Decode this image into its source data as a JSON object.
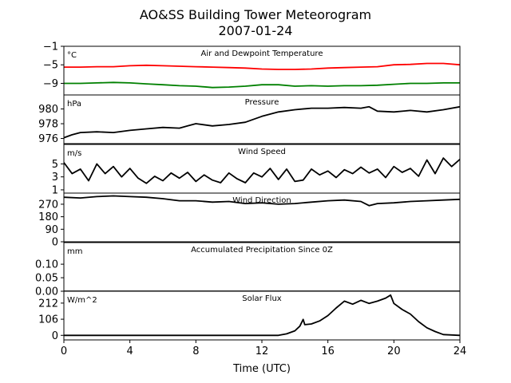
{
  "chart_data": {
    "type": "line",
    "title": "AO&SS Building Tower Meteorogram",
    "subtitle": "2007-01-24",
    "xlabel": "Time (UTC)",
    "xlim": [
      0,
      24
    ],
    "xticks": [
      "0",
      "4",
      "8",
      "12",
      "16",
      "20",
      "24"
    ],
    "panels": [
      {
        "id": "temp",
        "label": "Air and Dewpoint Temperature",
        "unit": "°C",
        "ylim": [
          -11.5,
          -1
        ],
        "yticks": [
          -1,
          -5,
          -9
        ],
        "ytick_labels": [
          "−1",
          "−5",
          "−9"
        ],
        "series": [
          {
            "color": "#ff0000",
            "x": [
              0,
              1,
              2,
              3,
              4,
              5,
              6,
              7,
              8,
              9,
              10,
              11,
              12,
              13,
              14,
              15,
              16,
              17,
              18,
              19,
              20,
              21,
              22,
              23,
              24
            ],
            "y": [
              -5.5,
              -5.5,
              -5.4,
              -5.4,
              -5.2,
              -5.1,
              -5.2,
              -5.3,
              -5.4,
              -5.5,
              -5.6,
              -5.7,
              -5.9,
              -6.0,
              -6.0,
              -5.9,
              -5.7,
              -5.6,
              -5.5,
              -5.4,
              -5.0,
              -4.9,
              -4.7,
              -4.7,
              -5.0
            ]
          },
          {
            "color": "#008000",
            "x": [
              0,
              1,
              2,
              3,
              4,
              5,
              6,
              7,
              8,
              9,
              10,
              11,
              12,
              13,
              14,
              15,
              16,
              17,
              18,
              19,
              20,
              21,
              22,
              23,
              24
            ],
            "y": [
              -9.0,
              -9.0,
              -8.9,
              -8.8,
              -8.9,
              -9.1,
              -9.3,
              -9.5,
              -9.6,
              -9.9,
              -9.8,
              -9.6,
              -9.3,
              -9.3,
              -9.6,
              -9.5,
              -9.6,
              -9.5,
              -9.5,
              -9.4,
              -9.2,
              -9.0,
              -9.0,
              -8.9,
              -8.9
            ]
          }
        ]
      },
      {
        "id": "pressure",
        "label": "Pressure",
        "unit": "hPa",
        "ylim": [
          975.3,
          981.9
        ],
        "yticks": [
          976,
          978,
          980
        ],
        "ytick_labels": [
          "976",
          "978",
          "980"
        ],
        "series": [
          {
            "color": "#000000",
            "x": [
              0,
              0.5,
              1,
              2,
              3,
              4,
              5,
              6,
              7,
              7.5,
              8,
              9,
              10,
              11,
              12,
              13,
              14,
              15,
              16,
              17,
              18,
              18.5,
              19,
              20,
              21,
              22,
              23,
              24
            ],
            "y": [
              976.1,
              976.5,
              976.8,
              976.9,
              976.8,
              977.1,
              977.3,
              977.5,
              977.4,
              977.7,
              978.0,
              977.7,
              977.9,
              978.2,
              979.0,
              979.6,
              979.9,
              980.1,
              980.1,
              980.2,
              980.1,
              980.3,
              979.7,
              979.6,
              979.8,
              979.6,
              979.9,
              980.3
            ]
          }
        ]
      },
      {
        "id": "wind_speed",
        "label": "Wind Speed",
        "unit": "m/s",
        "ylim": [
          0.5,
          8
        ],
        "yticks": [
          1,
          3,
          5
        ],
        "ytick_labels": [
          "1",
          "3",
          "5"
        ],
        "series": [
          {
            "color": "#000000",
            "x": [
              0,
              0.5,
              1,
              1.5,
              2,
              2.5,
              3,
              3.5,
              4,
              4.5,
              5,
              5.5,
              6,
              6.5,
              7,
              7.5,
              8,
              8.5,
              9,
              9.5,
              10,
              10.5,
              11,
              11.5,
              12,
              12.5,
              13,
              13.5,
              14,
              14.5,
              15,
              15.5,
              16,
              16.5,
              17,
              17.5,
              18,
              18.5,
              19,
              19.5,
              20,
              20.5,
              21,
              21.5,
              22,
              22.5,
              23,
              23.5,
              24
            ],
            "y": [
              5.2,
              3.5,
              4.2,
              2.4,
              5.0,
              3.5,
              4.6,
              3.0,
              4.3,
              2.8,
              2.0,
              3.1,
              2.4,
              3.6,
              2.8,
              3.7,
              2.3,
              3.3,
              2.5,
              2.1,
              3.6,
              2.7,
              2.1,
              3.6,
              3.0,
              4.3,
              2.6,
              4.2,
              2.3,
              2.5,
              4.2,
              3.3,
              3.9,
              2.9,
              4.1,
              3.5,
              4.5,
              3.6,
              4.2,
              2.9,
              4.6,
              3.7,
              4.3,
              3.1,
              5.6,
              3.5,
              5.9,
              4.6,
              5.7
            ]
          }
        ]
      },
      {
        "id": "wind_direction",
        "label": "Wind Direction",
        "unit": "",
        "ylim": [
          0,
          350
        ],
        "yticks": [
          0,
          90,
          180,
          270
        ],
        "ytick_labels": [
          "0",
          "90",
          "180",
          "270"
        ],
        "series": [
          {
            "color": "#000000",
            "x": [
              0,
              1,
              2,
              3,
              4,
              5,
              6,
              7,
              8,
              9,
              10,
              11,
              12,
              13,
              14,
              15,
              16,
              17,
              18,
              18.5,
              19,
              20,
              21,
              22,
              23,
              24
            ],
            "y": [
              320,
              315,
              325,
              330,
              325,
              320,
              310,
              295,
              295,
              285,
              290,
              275,
              280,
              270,
              275,
              285,
              295,
              300,
              290,
              260,
              275,
              280,
              290,
              295,
              300,
              305
            ]
          }
        ]
      },
      {
        "id": "precip",
        "label": "Accumulated Precipitation Since 0Z",
        "unit": "mm",
        "ylim": [
          0,
          0.18
        ],
        "yticks": [
          0.0,
          0.05,
          0.1
        ],
        "ytick_labels": [
          "0.00",
          "0.05",
          "0.10"
        ],
        "series": [
          {
            "color": "#000000",
            "x": [
              0,
              24
            ],
            "y": [
              0,
              0
            ]
          }
        ]
      },
      {
        "id": "solar",
        "label": "Solar Flux",
        "unit": "W/m^2",
        "ylim": [
          -30,
          290
        ],
        "yticks": [
          0,
          106,
          212
        ],
        "ytick_labels": [
          "0",
          "106",
          "212"
        ],
        "series": [
          {
            "color": "#000000",
            "x": [
              0,
              13.0,
              13.5,
              14.0,
              14.3,
              14.5,
              14.6,
              15.0,
              15.5,
              16.0,
              16.5,
              17.0,
              17.5,
              18.0,
              18.5,
              19.0,
              19.5,
              19.8,
              20.0,
              20.5,
              21.0,
              21.5,
              22.0,
              22.5,
              23.0,
              24.0
            ],
            "y": [
              0,
              0,
              10,
              30,
              60,
              105,
              70,
              75,
              95,
              130,
              180,
              225,
              205,
              230,
              210,
              225,
              245,
              265,
              210,
              170,
              140,
              90,
              50,
              25,
              5,
              0
            ]
          }
        ]
      }
    ]
  }
}
